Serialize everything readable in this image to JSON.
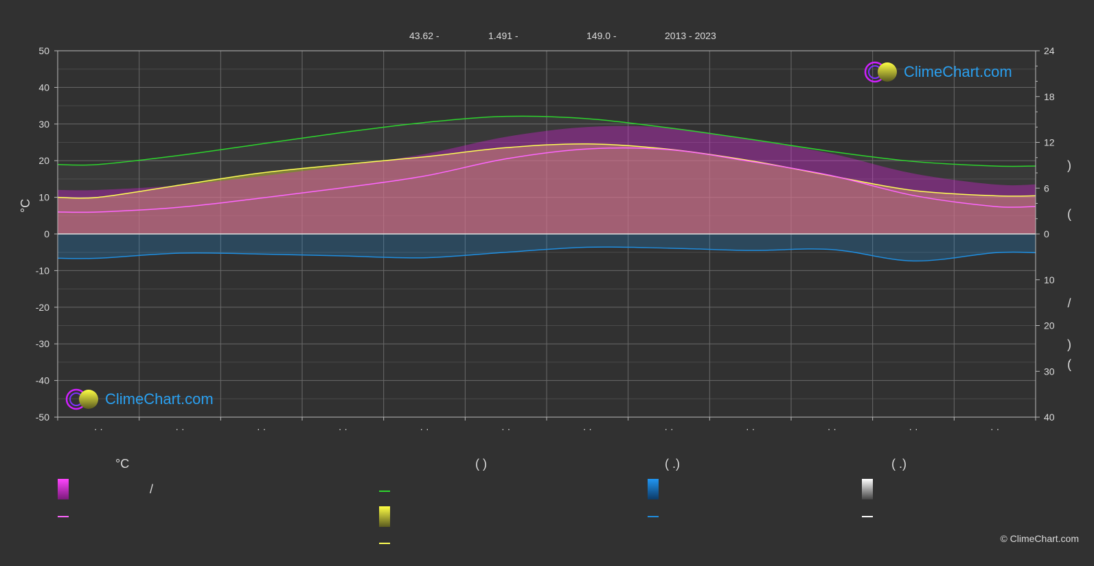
{
  "header": {
    "lat": "43.62 -",
    "lon": "1.491 -",
    "elev": "149.0 -",
    "years": "2013 - 2023"
  },
  "logo_text": "ClimeChart.com",
  "copyright": "© ClimeChart.com",
  "y_left_unit": "°C",
  "legend": {
    "col1_header": "°C",
    "col1_slash": "/",
    "col2_paren": "(          )",
    "col3_paren": "(    .)",
    "col4_paren": "(    .)"
  },
  "colors": {
    "temp_mean": "#ff66ff",
    "temp_range": "#e020e0",
    "daylight": "#2dd52d",
    "sunshine_fill": "#c8c832",
    "sunshine_line": "#ffff55",
    "rain": "#1f8ee0",
    "snow": "#ffffff",
    "logo": "#2aa0f0"
  },
  "chart_data": {
    "type": "line",
    "title": "",
    "xlabel": "",
    "ylabel": "°C",
    "ylim": [
      -50,
      50
    ],
    "y2lim_top": [
      0,
      24
    ],
    "y2lim_bottom": [
      0,
      40
    ],
    "y_ticks": [
      50,
      40,
      30,
      20,
      10,
      0,
      -10,
      -20,
      -30,
      -40,
      -50
    ],
    "y2_ticks_top": [
      24,
      18,
      12,
      6,
      0
    ],
    "y2_ticks_bottom": [
      10,
      20,
      30,
      40
    ],
    "x_tick_labels": [
      "· ·",
      "· ·",
      "· ·",
      "· ·",
      "· ·",
      "· ·",
      "· ·",
      "· ·",
      "· ·",
      "· ·",
      "· ·",
      "· ·"
    ],
    "months_x": [
      0.5,
      1.5,
      2.5,
      3.5,
      4.5,
      5.5,
      6.5,
      7.5,
      8.5,
      9.5,
      10.5,
      11.5
    ],
    "series": [
      {
        "key": "daylight",
        "axis": "right_top",
        "values": [
          9.1,
          10.3,
          11.8,
          13.3,
          14.6,
          15.4,
          15.1,
          13.9,
          12.4,
          10.8,
          9.5,
          8.9
        ]
      },
      {
        "key": "sunshine",
        "axis": "right_top",
        "values": [
          4.8,
          6.4,
          8.0,
          9.1,
          10.1,
          11.3,
          11.8,
          11.1,
          9.6,
          7.6,
          5.7,
          5.0
        ]
      },
      {
        "key": "temp_mean",
        "axis": "left",
        "values": [
          6.0,
          7.3,
          9.8,
          12.6,
          15.8,
          20.5,
          23.2,
          23.0,
          19.8,
          15.9,
          10.5,
          7.5
        ]
      },
      {
        "key": "rain_mean",
        "axis": "right_bottom",
        "values": [
          5.3,
          4.2,
          4.4,
          4.8,
          5.2,
          4.0,
          2.9,
          3.1,
          3.6,
          3.4,
          5.9,
          4.1
        ]
      }
    ]
  }
}
